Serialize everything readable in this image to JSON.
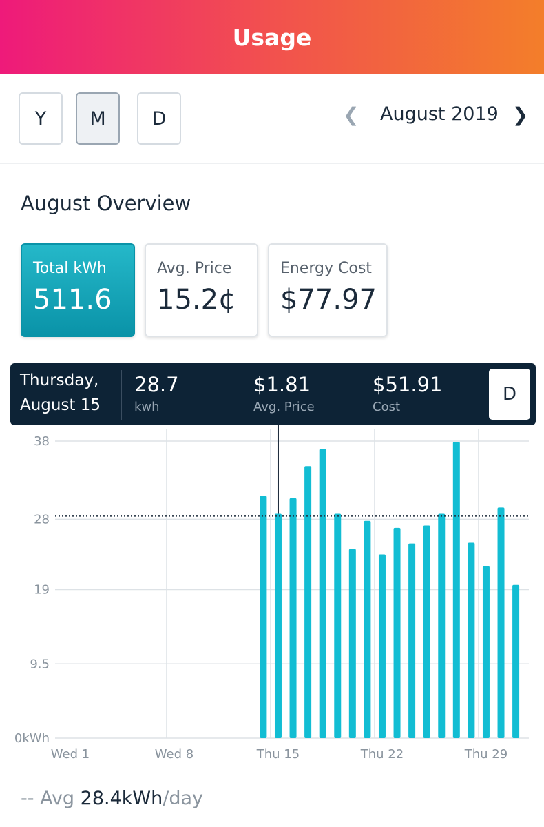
{
  "header": {
    "title": "Usage"
  },
  "period_buttons": [
    "Y",
    "M",
    "D"
  ],
  "navigation": {
    "label": "August 2019"
  },
  "overview": {
    "title": "August Overview",
    "cards": [
      {
        "label": "Total kWh",
        "value": "511.6"
      },
      {
        "label": "Avg. Price",
        "value": "15.2¢"
      },
      {
        "label": "Energy Cost",
        "value": "$77.97"
      }
    ]
  },
  "tooltip": {
    "date_line1": "Thursday,",
    "date_line2": "August 15",
    "kwh": 28.7,
    "kwh_label": "kwh",
    "price": "$1.81",
    "price_label": "Avg. Price",
    "cost": "$51.91",
    "cost_label": "Cost",
    "button": "D"
  },
  "chart_data": {
    "type": "bar",
    "color": "#12bdd3",
    "grid": true,
    "categories": [
      "Wed 1",
      null,
      null,
      null,
      null,
      null,
      null,
      "Wed 8",
      null,
      null,
      null,
      null,
      null,
      null,
      "Thu 15",
      null,
      null,
      null,
      null,
      null,
      null,
      "Thu 22",
      null,
      null,
      null,
      null,
      null,
      null,
      "Thu 29",
      null,
      null
    ],
    "values": [
      null,
      null,
      null,
      null,
      null,
      null,
      null,
      null,
      null,
      null,
      null,
      null,
      null,
      31.0,
      28.7,
      30.7,
      34.8,
      37.0,
      28.7,
      24.2,
      27.8,
      23.5,
      26.9,
      24.9,
      27.2,
      28.7,
      37.9,
      25.0,
      22.0,
      29.5,
      19.6
    ],
    "ylim": [
      0,
      38
    ],
    "yticks": [
      {
        "value": 0,
        "label": "0kWh"
      },
      9.5,
      19,
      28,
      38
    ],
    "average": 28.4,
    "average_label": "28.4kWh"
  },
  "footer": {
    "prefix": "-- Avg",
    "suffix": "/day"
  }
}
